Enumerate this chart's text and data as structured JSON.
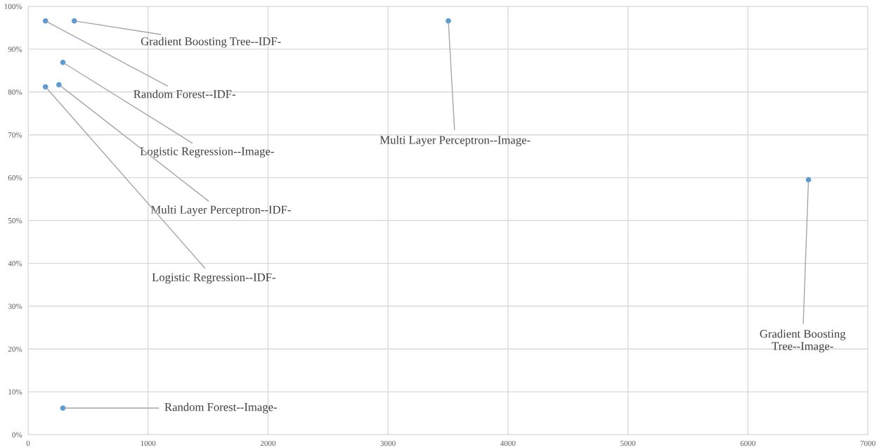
{
  "chart_data": {
    "type": "scatter",
    "x": [
      145,
      385,
      290,
      257,
      145,
      3503,
      6505,
      290
    ],
    "series": [
      {
        "color": "#5b9bd5",
        "values": [
          96.6,
          96.6,
          86.9,
          81.7,
          81.2,
          96.6,
          59.5,
          6.2
        ]
      }
    ],
    "xlim": [
      0,
      7000
    ],
    "xticks": [
      0,
      1000,
      2000,
      3000,
      4000,
      5000,
      6000,
      7000
    ],
    "ylim": [
      0,
      100
    ],
    "yticks": [
      {
        "value": 0,
        "label": "0%"
      },
      {
        "value": 10,
        "label": "10%"
      },
      {
        "value": 20,
        "label": "20%"
      },
      {
        "value": 30,
        "label": "30%"
      },
      {
        "value": 40,
        "label": "40%"
      },
      {
        "value": 50,
        "label": "50%"
      },
      {
        "value": 60,
        "label": "60%"
      },
      {
        "value": 70,
        "label": "70%"
      },
      {
        "value": 80,
        "label": "80%"
      },
      {
        "value": 90,
        "label": "90%"
      },
      {
        "value": 100,
        "label": "100%"
      }
    ],
    "grid": true,
    "marker": "circle",
    "annotations": [
      {
        "text": "Random Forest--IDF-",
        "x": 145,
        "y": 96.6
      },
      {
        "text": "Gradient Boosting Tree--IDF-",
        "x": 385,
        "y": 96.6
      },
      {
        "text": "Logistic Regression--Image-",
        "x": 290,
        "y": 86.9
      },
      {
        "text": "Multi Layer Perceptron--IDF-",
        "x": 257,
        "y": 81.7
      },
      {
        "text": "Logistic Regression--IDF-",
        "x": 145,
        "y": 81.2
      },
      {
        "text": "Multi Layer Perceptron--Image-",
        "x": 3503,
        "y": 96.6
      },
      {
        "text": "Gradient Boosting\nTree--Image-",
        "x": 6505,
        "y": 59.5
      },
      {
        "text": "Random Forest--Image-",
        "x": 290,
        "y": 6.2
      }
    ]
  }
}
